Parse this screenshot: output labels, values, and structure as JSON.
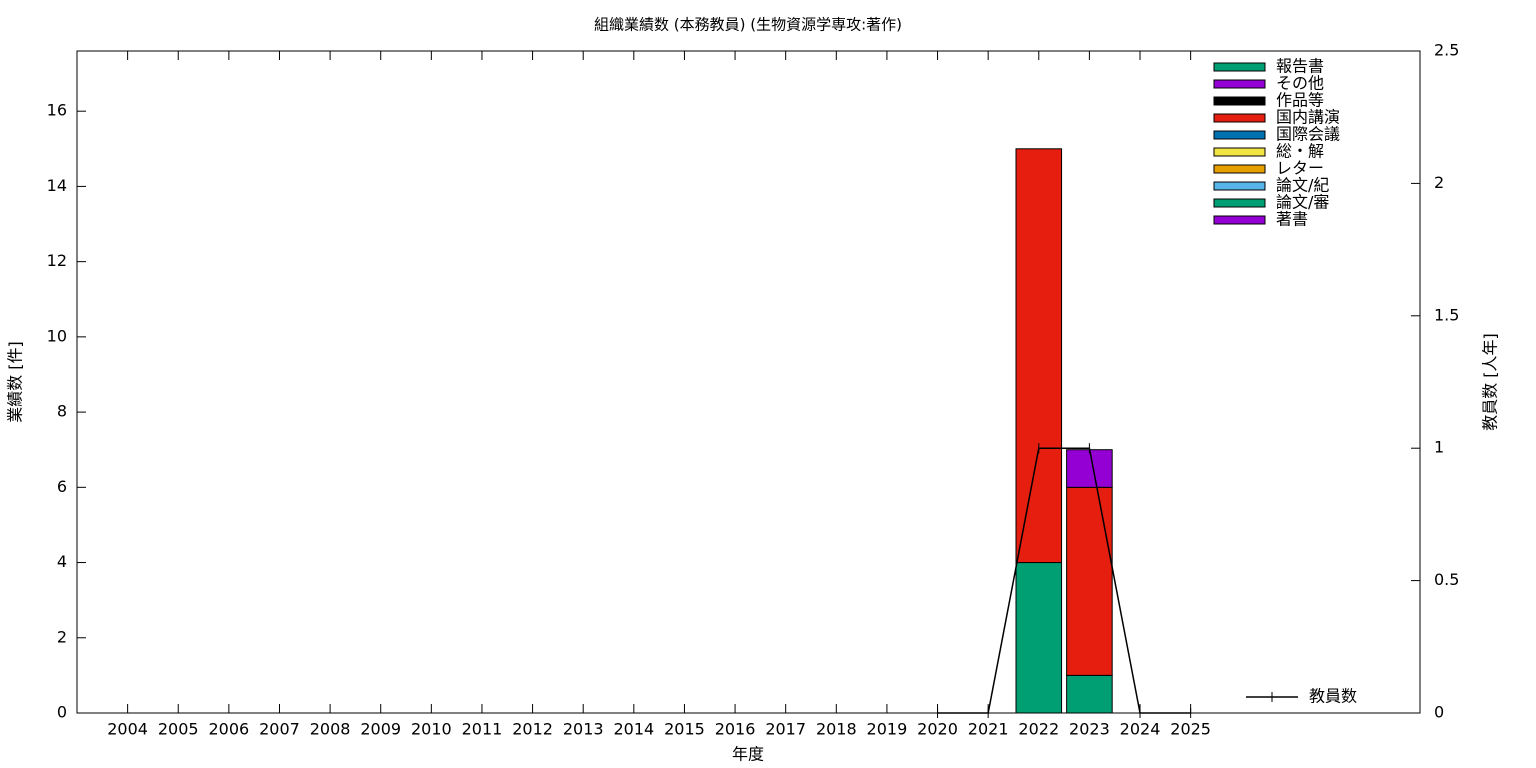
{
  "chart_data": {
    "type": "bar",
    "stacked": true,
    "title": "組織業績数 (本務教員) (生物資源学専攻:著作)",
    "xlabel": "年度",
    "ylabel": "業績数 [件]",
    "y2label": "教員数 [人年]",
    "categories": [
      "2004",
      "2005",
      "2006",
      "2007",
      "2008",
      "2009",
      "2010",
      "2011",
      "2012",
      "2013",
      "2014",
      "2015",
      "2016",
      "2017",
      "2018",
      "2019",
      "2020",
      "2021",
      "2022",
      "2023",
      "2024",
      "2025"
    ],
    "ylim": [
      0,
      17.6
    ],
    "yticks": [
      0,
      2,
      4,
      6,
      8,
      10,
      12,
      14,
      16
    ],
    "y2lim": [
      0,
      2.5
    ],
    "y2ticks": [
      0,
      0.5,
      1,
      1.5,
      2,
      2.5
    ],
    "legend": "upper right",
    "series": [
      {
        "name": "報告書",
        "color": "#009e73",
        "values": [
          0,
          0,
          0,
          0,
          0,
          0,
          0,
          0,
          0,
          0,
          0,
          0,
          0,
          0,
          0,
          0,
          0,
          0,
          0,
          0,
          0,
          0
        ]
      },
      {
        "name": "その他",
        "color": "#9400d3",
        "values": [
          0,
          0,
          0,
          0,
          0,
          0,
          0,
          0,
          0,
          0,
          0,
          0,
          0,
          0,
          0,
          0,
          0,
          0,
          0,
          1,
          0,
          0
        ]
      },
      {
        "name": "作品等",
        "color": "#000000",
        "values": [
          0,
          0,
          0,
          0,
          0,
          0,
          0,
          0,
          0,
          0,
          0,
          0,
          0,
          0,
          0,
          0,
          0,
          0,
          0,
          0,
          0,
          0
        ]
      },
      {
        "name": "国内講演",
        "color": "#e51e10",
        "values": [
          0,
          0,
          0,
          0,
          0,
          0,
          0,
          0,
          0,
          0,
          0,
          0,
          0,
          0,
          0,
          0,
          0,
          0,
          11,
          5,
          0,
          0
        ]
      },
      {
        "name": "国際会議",
        "color": "#0072b2",
        "values": [
          0,
          0,
          0,
          0,
          0,
          0,
          0,
          0,
          0,
          0,
          0,
          0,
          0,
          0,
          0,
          0,
          0,
          0,
          0,
          0,
          0,
          0
        ]
      },
      {
        "name": "総・解",
        "color": "#f0e442",
        "values": [
          0,
          0,
          0,
          0,
          0,
          0,
          0,
          0,
          0,
          0,
          0,
          0,
          0,
          0,
          0,
          0,
          0,
          0,
          0,
          0,
          0,
          0
        ]
      },
      {
        "name": "レター",
        "color": "#e69f00",
        "values": [
          0,
          0,
          0,
          0,
          0,
          0,
          0,
          0,
          0,
          0,
          0,
          0,
          0,
          0,
          0,
          0,
          0,
          0,
          0,
          0,
          0,
          0
        ]
      },
      {
        "name": "論文/紀",
        "color": "#56b4e9",
        "values": [
          0,
          0,
          0,
          0,
          0,
          0,
          0,
          0,
          0,
          0,
          0,
          0,
          0,
          0,
          0,
          0,
          0,
          0,
          0,
          0,
          0,
          0
        ]
      },
      {
        "name": "論文/審",
        "color": "#009e73",
        "values": [
          0,
          0,
          0,
          0,
          0,
          0,
          0,
          0,
          0,
          0,
          0,
          0,
          0,
          0,
          0,
          0,
          0,
          0,
          4,
          1,
          0,
          0
        ]
      },
      {
        "name": "著書",
        "color": "#9400d3",
        "values": [
          0,
          0,
          0,
          0,
          0,
          0,
          0,
          0,
          0,
          0,
          0,
          0,
          0,
          0,
          0,
          0,
          0,
          0,
          0,
          0,
          0,
          0
        ]
      },
      {
        "name": "教員数",
        "type": "line",
        "axis": "y2",
        "color": "#000000",
        "values": [
          null,
          null,
          null,
          null,
          null,
          null,
          null,
          null,
          null,
          null,
          null,
          null,
          null,
          null,
          null,
          null,
          0,
          0,
          1,
          1,
          0,
          0
        ]
      }
    ]
  }
}
